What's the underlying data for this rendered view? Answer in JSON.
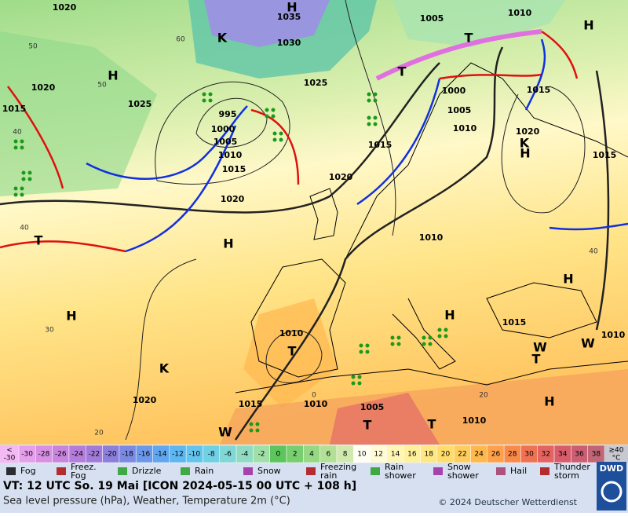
{
  "map": {
    "pressure_labels": [
      "1020",
      "1035",
      "1030",
      "1005",
      "1010",
      "1020",
      "1025",
      "1025",
      "995",
      "1000",
      "1005",
      "1010",
      "1015",
      "1000",
      "1005",
      "1015",
      "1010",
      "1020",
      "1015",
      "1015",
      "1015",
      "1020",
      "1020",
      "1010",
      "1010",
      "1015",
      "1010",
      "1020",
      "1015",
      "1010",
      "1005",
      "1010"
    ],
    "centers": [
      "H",
      "H",
      "H",
      "T",
      "T",
      "T",
      "H",
      "H",
      "H",
      "H",
      "T",
      "T",
      "H",
      "T",
      "T",
      "H",
      "K",
      "K",
      "K",
      "W",
      "W",
      "W"
    ],
    "temperature_labels": [
      "60",
      "50",
      "50",
      "40",
      "40",
      "30",
      "20",
      "0",
      "20",
      "40"
    ]
  },
  "legend": {
    "scale_first": [
      "<",
      "-30"
    ],
    "scale_steps": [
      {
        "label": "-30",
        "color": "#e4a0ea"
      },
      {
        "label": "-28",
        "color": "#d890e4"
      },
      {
        "label": "-26",
        "color": "#c985de"
      },
      {
        "label": "-24",
        "color": "#b57ddb"
      },
      {
        "label": "-22",
        "color": "#a27bd9"
      },
      {
        "label": "-20",
        "color": "#8c7edb"
      },
      {
        "label": "-18",
        "color": "#7b8ae2"
      },
      {
        "label": "-16",
        "color": "#6c98ea"
      },
      {
        "label": "-14",
        "color": "#60a7ef"
      },
      {
        "label": "-12",
        "color": "#5db7f1"
      },
      {
        "label": "-10",
        "color": "#63c5ee"
      },
      {
        "label": "-8",
        "color": "#70d0e4"
      },
      {
        "label": "-6",
        "color": "#80d8d6"
      },
      {
        "label": "-4",
        "color": "#90dcc2"
      },
      {
        "label": "-2",
        "color": "#a0e0a8"
      },
      {
        "label": "0",
        "color": "#5cc65c"
      },
      {
        "label": "2",
        "color": "#78ce70"
      },
      {
        "label": "4",
        "color": "#96d884"
      },
      {
        "label": "6",
        "color": "#b2e096"
      },
      {
        "label": "8",
        "color": "#cfe9ae"
      },
      {
        "label": "10",
        "color": "#fffff4"
      },
      {
        "label": "12",
        "color": "#fffbd4"
      },
      {
        "label": "14",
        "color": "#fff5b4"
      },
      {
        "label": "16",
        "color": "#fff09c"
      },
      {
        "label": "18",
        "color": "#ffe884"
      },
      {
        "label": "20",
        "color": "#ffdc6c"
      },
      {
        "label": "22",
        "color": "#ffcd5c"
      },
      {
        "label": "24",
        "color": "#ffb84c"
      },
      {
        "label": "26",
        "color": "#ffa04a"
      },
      {
        "label": "28",
        "color": "#f98a4a"
      },
      {
        "label": "30",
        "color": "#f07252"
      },
      {
        "label": "32",
        "color": "#e46462"
      },
      {
        "label": "34",
        "color": "#d85c6a"
      },
      {
        "label": "36",
        "color": "#cc5e72"
      },
      {
        "label": "38",
        "color": "#c06676"
      }
    ],
    "scale_last": [
      "≥40",
      "°C"
    ],
    "symbols": [
      [
        "Fog"
      ],
      [
        "Freez.",
        "Fog"
      ],
      [
        "Drizzle"
      ],
      [
        "Rain"
      ],
      [
        "Snow"
      ],
      [
        "Freezing",
        "rain"
      ],
      [
        "Rain",
        "shower"
      ],
      [
        "Snow",
        "shower"
      ],
      [
        "Hail"
      ],
      [
        "Thunder",
        "storm"
      ]
    ]
  },
  "footer": {
    "valid_time": "VT: 12 UTC So.  19 Mai [ICON 2024-05-15  00 UTC + 108 h]",
    "description": "Sea level pressure (hPa), Weather, Temperature 2m (°C)",
    "copyright": "© 2024 Deutscher Wetterdienst",
    "logo": "DWD"
  }
}
